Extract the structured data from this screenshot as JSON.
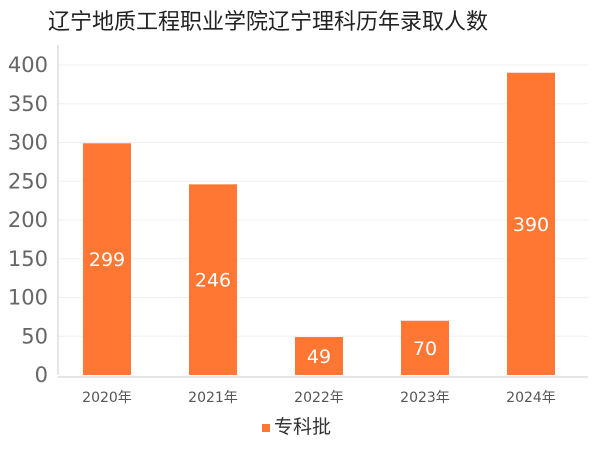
{
  "chart_data": {
    "type": "bar",
    "title": "辽宁地质工程职业学院辽宁理科历年录取人数",
    "categories": [
      "2020年",
      "2021年",
      "2022年",
      "2023年",
      "2024年"
    ],
    "series": [
      {
        "name": "专科批",
        "values": [
          299,
          246,
          49,
          70,
          390
        ],
        "color": "#ff7733"
      }
    ],
    "ylim": [
      0,
      400
    ],
    "yticks": [
      0,
      50,
      100,
      150,
      200,
      250,
      300,
      350,
      400
    ],
    "data_labels": true,
    "grid": true,
    "legend": "bottom-center"
  }
}
